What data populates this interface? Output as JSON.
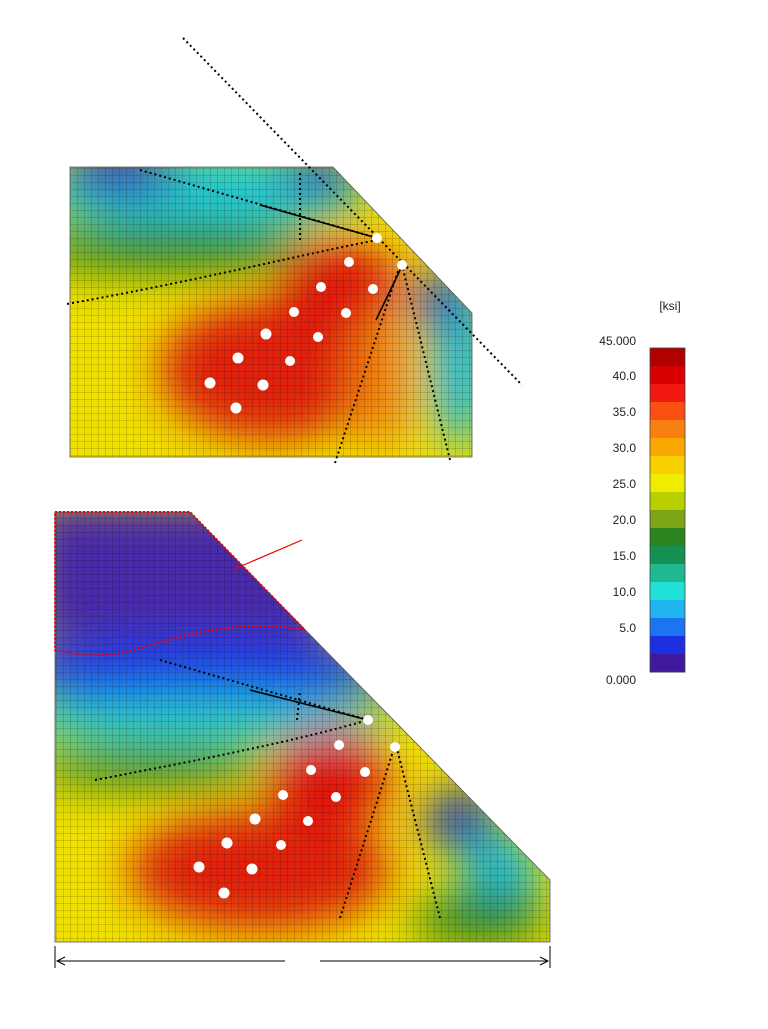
{
  "colorbar": {
    "unit": "[ksi]",
    "labels": [
      "45.000",
      "40.0",
      "35.0",
      "30.0",
      "25.0",
      "20.0",
      "15.0",
      "10.0",
      "5.0",
      "0.000"
    ],
    "colors": [
      "#b00000",
      "#d80000",
      "#f01810",
      "#f85010",
      "#f88010",
      "#f8a800",
      "#f8d000",
      "#f0ec00",
      "#b8d000",
      "#7ca414",
      "#2c8420",
      "#149050",
      "#20b890",
      "#20e0d8",
      "#20b4f0",
      "#1c74f0",
      "#1c30e0",
      "#40189c"
    ]
  }
}
